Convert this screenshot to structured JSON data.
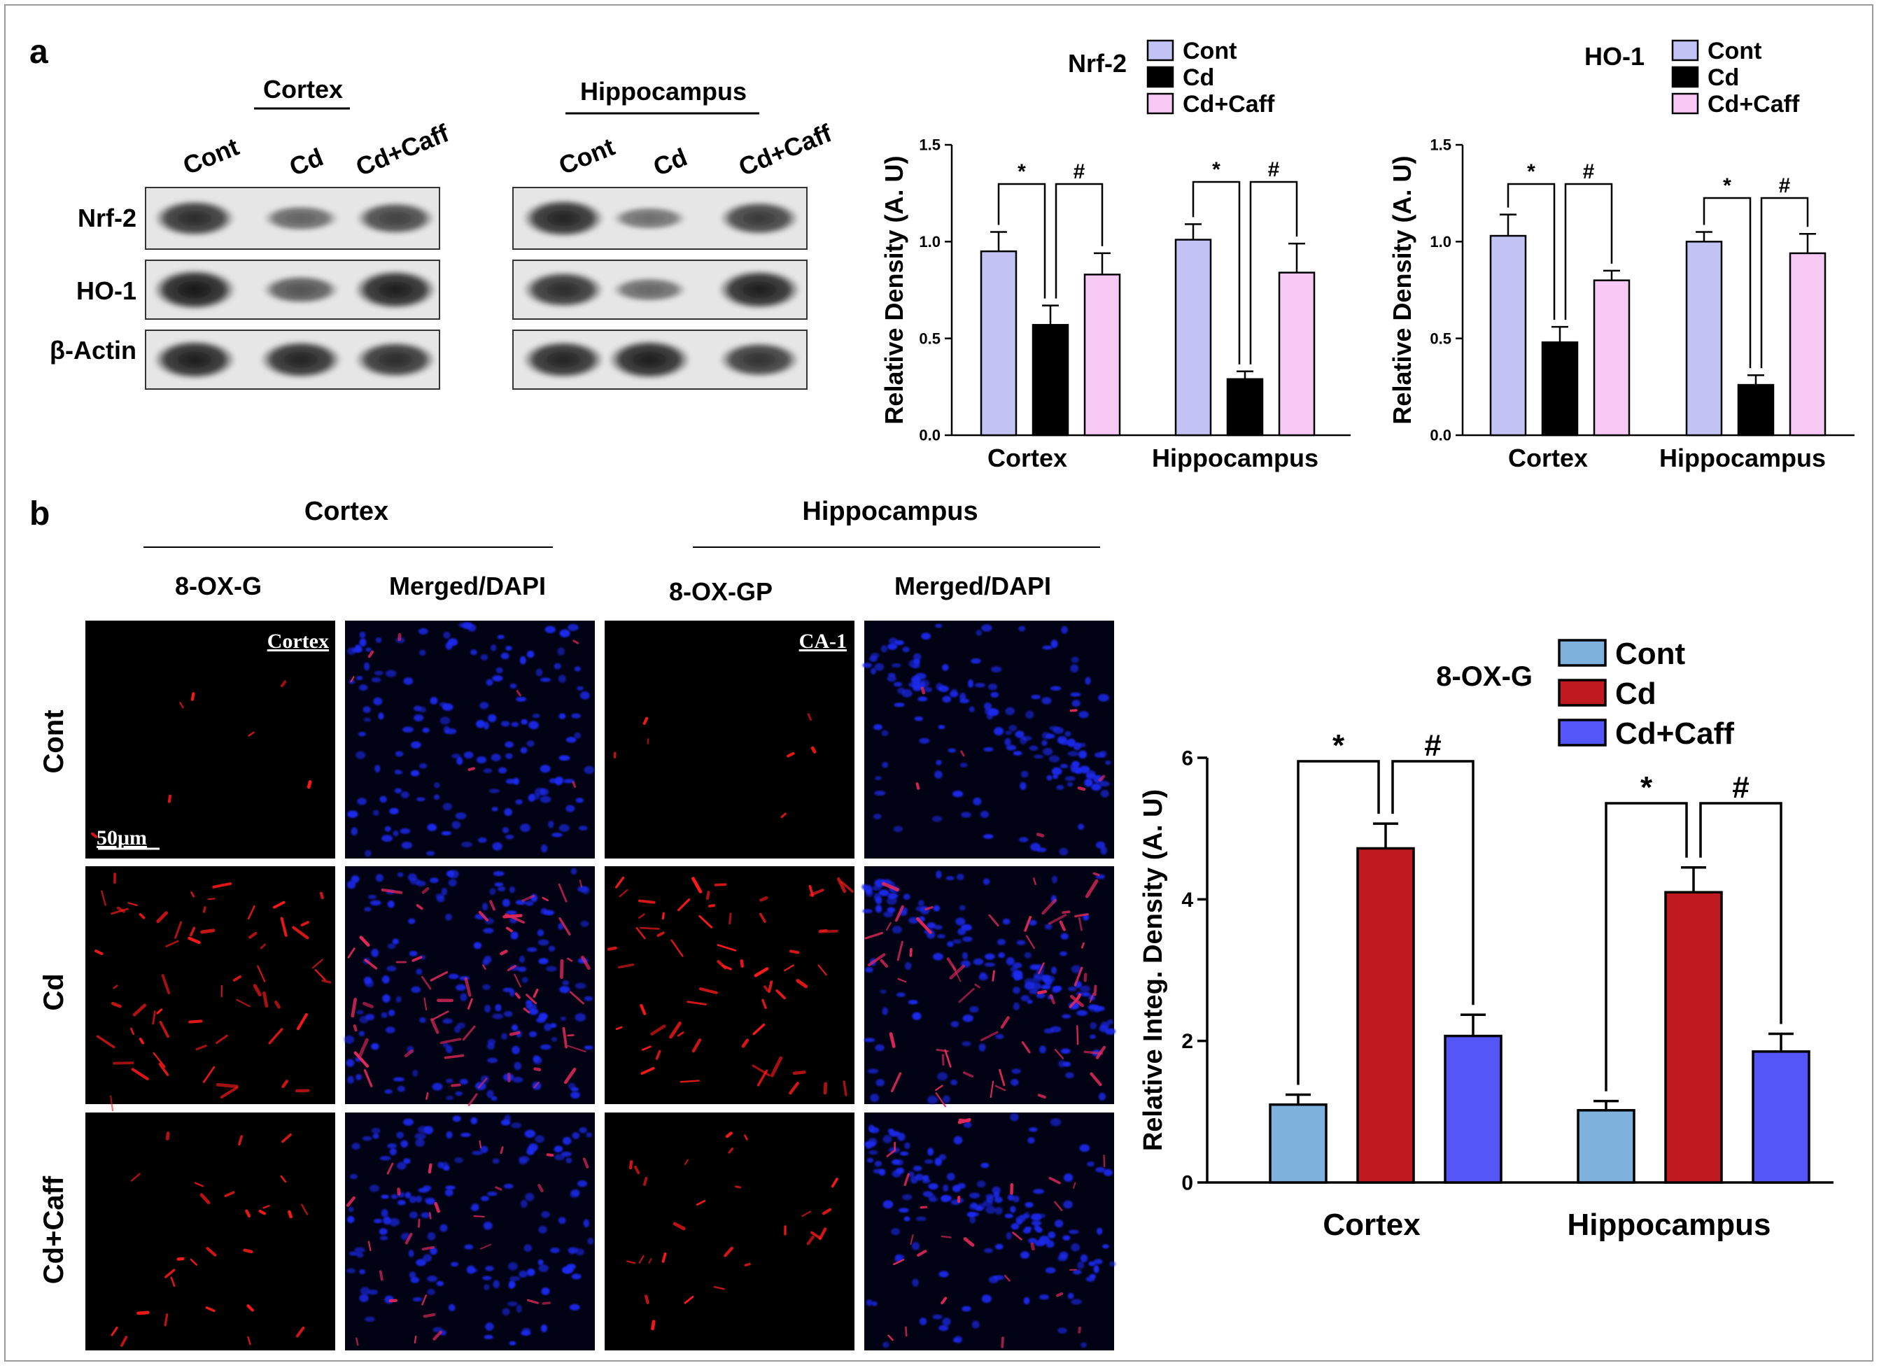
{
  "panel_labels": {
    "a": "a",
    "b": "b"
  },
  "western_blot": {
    "groups": [
      {
        "title": "Cortex",
        "lanes": [
          "Cont",
          "Cd",
          "Cd+Caff"
        ]
      },
      {
        "title": "Hippocampus",
        "lanes": [
          "Cont",
          "Cd",
          "Cd+Caff"
        ]
      }
    ],
    "rows": [
      "Nrf-2",
      "HO-1",
      "β-Actin"
    ],
    "band_intensity": {
      "cortex": [
        [
          0.85,
          0.45,
          0.7
        ],
        [
          1.0,
          0.55,
          0.95
        ],
        [
          0.95,
          0.9,
          0.85
        ]
      ],
      "hippocampus": [
        [
          0.9,
          0.35,
          0.75
        ],
        [
          0.85,
          0.4,
          0.95
        ],
        [
          0.9,
          0.95,
          0.8
        ]
      ]
    }
  },
  "immunofluorescence": {
    "regions": [
      {
        "title": "Cortex",
        "columns": [
          "8-OX-G",
          "Merged/DAPI"
        ],
        "tag": "Cortex"
      },
      {
        "title": "Hippocampus",
        "columns": [
          "8-OX-GP",
          "Merged/DAPI"
        ],
        "tag": "CA-1"
      }
    ],
    "rows": [
      "Cont",
      "Cd",
      "Cd+Caff"
    ],
    "scale_bar": "50μm",
    "signal_level": [
      0.12,
      1.0,
      0.45
    ]
  },
  "colors": {
    "cont_a": "#c3c2f5",
    "cd_a": "#000000",
    "caff_a": "#f8c9f4",
    "cont_b": "#7eb2dc",
    "cd_b": "#bf1a1f",
    "caff_b": "#5556f8"
  },
  "chart_data": [
    {
      "type": "bar",
      "title": "Nrf-2",
      "categories": [
        "Cortex",
        "Hippocampus"
      ],
      "series": [
        {
          "name": "Cont",
          "values": [
            0.95,
            1.01
          ],
          "errors": [
            0.1,
            0.08
          ]
        },
        {
          "name": "Cd",
          "values": [
            0.57,
            0.29
          ],
          "errors": [
            0.1,
            0.04
          ]
        },
        {
          "name": "Cd+Caff",
          "values": [
            0.83,
            0.84
          ],
          "errors": [
            0.11,
            0.15
          ]
        }
      ],
      "ylabel": "Relative Density (A. U)",
      "ylim": [
        0,
        1.5
      ],
      "yticks": [
        "0.0",
        "0.5",
        "1.0",
        "1.5"
      ],
      "significance": [
        "*",
        "#"
      ],
      "legend": "top-right"
    },
    {
      "type": "bar",
      "title": "HO-1",
      "categories": [
        "Cortex",
        "Hippocampus"
      ],
      "series": [
        {
          "name": "Cont",
          "values": [
            1.03,
            1.0
          ],
          "errors": [
            0.11,
            0.05
          ]
        },
        {
          "name": "Cd",
          "values": [
            0.48,
            0.26
          ],
          "errors": [
            0.08,
            0.05
          ]
        },
        {
          "name": "Cd+Caff",
          "values": [
            0.8,
            0.94
          ],
          "errors": [
            0.05,
            0.1
          ]
        }
      ],
      "ylabel": "Relative Density (A. U)",
      "ylim": [
        0,
        1.5
      ],
      "yticks": [
        "0.0",
        "0.5",
        "1.0",
        "1.5"
      ],
      "significance": [
        "*",
        "#"
      ],
      "legend": "top-right"
    },
    {
      "type": "bar",
      "title": "8-OX-G",
      "categories": [
        "Cortex",
        "Hippocampus"
      ],
      "series": [
        {
          "name": "Cont",
          "values": [
            1.1,
            1.02
          ],
          "errors": [
            0.14,
            0.13
          ]
        },
        {
          "name": "Cd",
          "values": [
            4.72,
            4.1
          ],
          "errors": [
            0.35,
            0.35
          ]
        },
        {
          "name": "Cd+Caff",
          "values": [
            2.07,
            1.85
          ],
          "errors": [
            0.3,
            0.25
          ]
        }
      ],
      "ylabel": "Relative Integ. Density (A. U)",
      "ylim": [
        0,
        6
      ],
      "yticks": [
        "0",
        "2",
        "4",
        "6"
      ],
      "significance": [
        "*",
        "#"
      ],
      "legend": "top-right"
    }
  ]
}
